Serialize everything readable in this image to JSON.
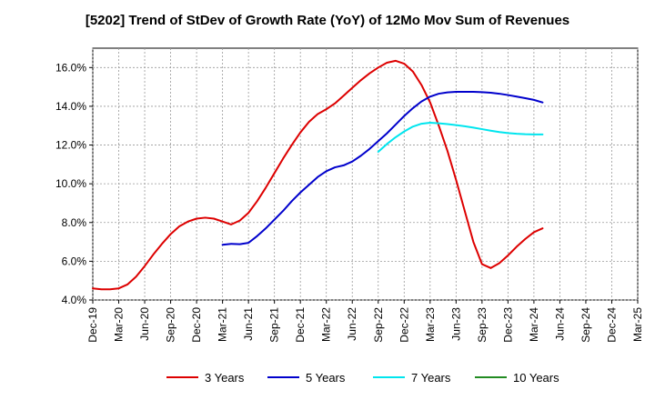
{
  "chart_data": {
    "type": "line",
    "title": "[5202]  Trend of StDev of Growth Rate (YoY) of 12Mo Mov Sum of Revenues",
    "xlabel": "",
    "ylabel": "",
    "ylim": [
      4.0,
      17.0
    ],
    "y_ticks": [
      4.0,
      6.0,
      8.0,
      10.0,
      12.0,
      14.0,
      16.0
    ],
    "y_tick_labels": [
      "4.0%",
      "6.0%",
      "8.0%",
      "10.0%",
      "12.0%",
      "14.0%",
      "16.0%"
    ],
    "x_tick_labels": [
      "Dec-19",
      "Mar-20",
      "Jun-20",
      "Sep-20",
      "Dec-20",
      "Mar-21",
      "Jun-21",
      "Sep-21",
      "Dec-21",
      "Mar-22",
      "Jun-22",
      "Sep-22",
      "Dec-22",
      "Mar-23",
      "Jun-23",
      "Sep-23",
      "Dec-23",
      "Mar-24",
      "Jun-24",
      "Sep-24",
      "Dec-24",
      "Mar-25"
    ],
    "grid": true,
    "legend_position": "bottom",
    "series": [
      {
        "name": "3 Years",
        "color": "#dd0000",
        "start_index": 0,
        "values": [
          4.6,
          4.55,
          4.55,
          4.6,
          4.8,
          5.2,
          5.75,
          6.35,
          6.9,
          7.4,
          7.8,
          8.05,
          8.2,
          8.25,
          8.2,
          8.05,
          7.9,
          8.1,
          8.5,
          9.1,
          9.8,
          10.55,
          11.3,
          12.0,
          12.65,
          13.2,
          13.6,
          13.85,
          14.15,
          14.55,
          14.95,
          15.35,
          15.7,
          16.0,
          16.25,
          16.35,
          16.2,
          15.8,
          15.1,
          14.2,
          13.0,
          11.7,
          10.2,
          8.6,
          7.0,
          5.85,
          5.65,
          5.9,
          6.3,
          6.75,
          7.15,
          7.5,
          7.7
        ]
      },
      {
        "name": "5 Years",
        "color": "#0000cc",
        "start_index": 15,
        "values": [
          6.85,
          6.9,
          6.88,
          6.95,
          7.3,
          7.7,
          8.15,
          8.6,
          9.1,
          9.55,
          9.95,
          10.35,
          10.65,
          10.85,
          10.95,
          11.15,
          11.45,
          11.8,
          12.2,
          12.6,
          13.05,
          13.5,
          13.9,
          14.25,
          14.5,
          14.65,
          14.72,
          14.75,
          14.75,
          14.75,
          14.73,
          14.7,
          14.65,
          14.58,
          14.5,
          14.42,
          14.33,
          14.2
        ]
      },
      {
        "name": "7 Years",
        "color": "#00e5ee",
        "start_index": 33,
        "values": [
          11.65,
          12.05,
          12.4,
          12.7,
          12.95,
          13.1,
          13.15,
          13.12,
          13.08,
          13.03,
          12.97,
          12.9,
          12.82,
          12.74,
          12.67,
          12.62,
          12.58,
          12.56,
          12.55,
          12.55
        ]
      },
      {
        "name": "10 Years",
        "color": "#228b22",
        "start_index": 0,
        "values": []
      }
    ]
  }
}
